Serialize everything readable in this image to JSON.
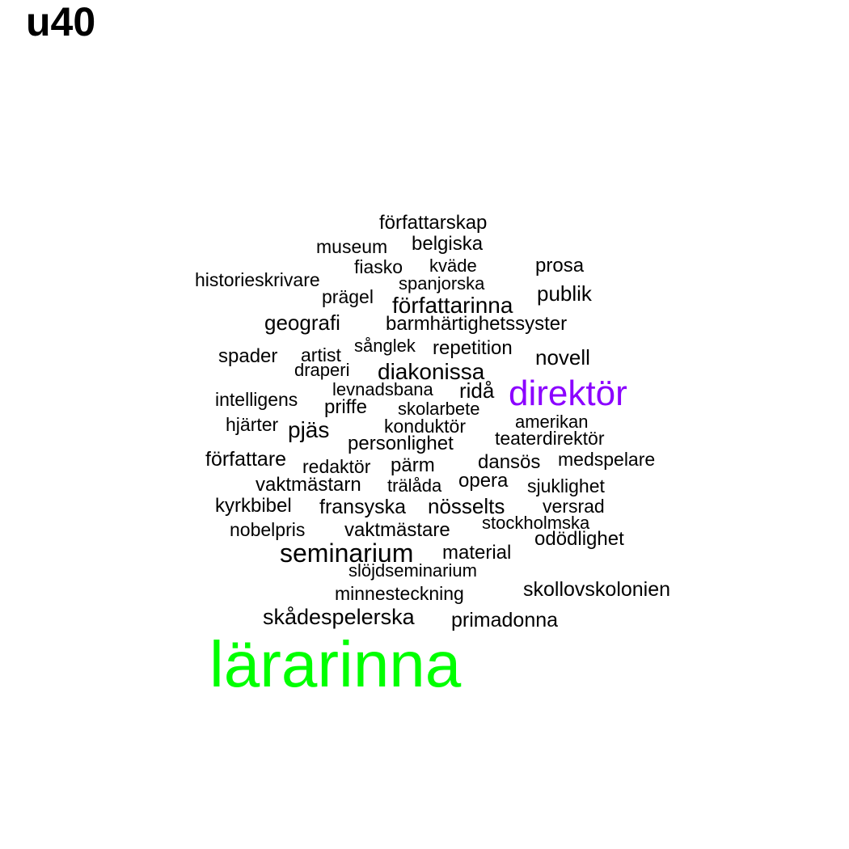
{
  "title": "u40",
  "words": [
    {
      "text": "författarskap"
    },
    {
      "text": "museum"
    },
    {
      "text": "belgiska"
    },
    {
      "text": "fiasko"
    },
    {
      "text": "kväde"
    },
    {
      "text": "prosa"
    },
    {
      "text": "historieskrivare"
    },
    {
      "text": "spanjorska"
    },
    {
      "text": "prägel"
    },
    {
      "text": "publik"
    },
    {
      "text": "författarinna"
    },
    {
      "text": "geografi"
    },
    {
      "text": "barmhärtighetssyster"
    },
    {
      "text": "sånglek"
    },
    {
      "text": "repetition"
    },
    {
      "text": "spader"
    },
    {
      "text": "artist"
    },
    {
      "text": "novell"
    },
    {
      "text": "draperi"
    },
    {
      "text": "diakonissa"
    },
    {
      "text": "levnadsbana"
    },
    {
      "text": "ridå"
    },
    {
      "text": "direktör",
      "color": "#8B00FF"
    },
    {
      "text": "intelligens"
    },
    {
      "text": "priffe"
    },
    {
      "text": "skolarbete"
    },
    {
      "text": "hjärter"
    },
    {
      "text": "pjäs"
    },
    {
      "text": "konduktör"
    },
    {
      "text": "amerikan"
    },
    {
      "text": "personlighet"
    },
    {
      "text": "teaterdirektör"
    },
    {
      "text": "författare"
    },
    {
      "text": "redaktör"
    },
    {
      "text": "pärm"
    },
    {
      "text": "dansös"
    },
    {
      "text": "medspelare"
    },
    {
      "text": "vaktmästarn"
    },
    {
      "text": "trälåda"
    },
    {
      "text": "opera"
    },
    {
      "text": "sjuklighet"
    },
    {
      "text": "kyrkbibel"
    },
    {
      "text": "fransyska"
    },
    {
      "text": "nösselts"
    },
    {
      "text": "versrad"
    },
    {
      "text": "stockholmska"
    },
    {
      "text": "nobelpris"
    },
    {
      "text": "vaktmästare"
    },
    {
      "text": "odödlighet"
    },
    {
      "text": "seminarium"
    },
    {
      "text": "material"
    },
    {
      "text": "slöjdseminarium"
    },
    {
      "text": "minnesteckning"
    },
    {
      "text": "skollovskolonien"
    },
    {
      "text": "skådespelerska"
    },
    {
      "text": "primadonna"
    },
    {
      "text": "lärarinna",
      "color": "#00FF00"
    }
  ]
}
